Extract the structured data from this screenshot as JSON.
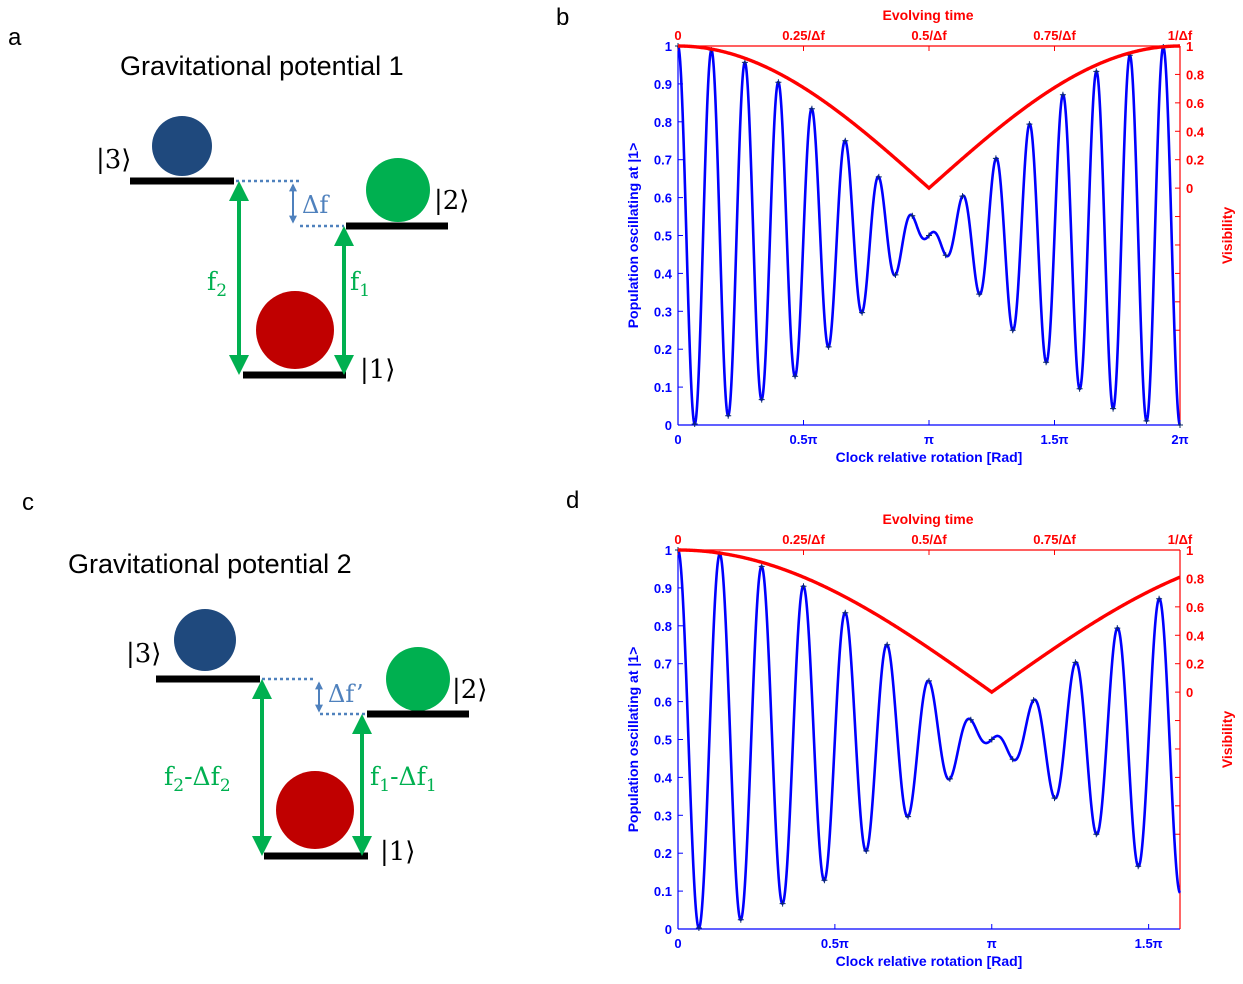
{
  "panels": {
    "a": {
      "letter": "a",
      "title": "Gravitational potential 1",
      "ket3": "|3⟩",
      "ket2": "|2⟩",
      "ket1": "|1⟩",
      "delta": "Δf",
      "left_freq": "f",
      "left_sub": "2",
      "right_freq": "f",
      "right_sub": "1",
      "colors": {
        "ball3": "#1f497d",
        "ball2": "#00b050",
        "ball1": "#c00000",
        "arrow": "#00b050",
        "delta": "#4f81bd"
      }
    },
    "b": {
      "letter": "b"
    },
    "c": {
      "letter": "c",
      "title": "Gravitational potential 2",
      "ket3": "|3⟩",
      "ket2": "|2⟩",
      "ket1": "|1⟩",
      "delta": "Δf’",
      "left_freq": "f",
      "left_sub": "2",
      "left_mid": "-Δf",
      "left_sub2": "2",
      "right_freq": "f",
      "right_sub": "1",
      "right_mid": "-Δf",
      "right_sub2": "1"
    },
    "d": {
      "letter": "d"
    }
  },
  "chart_data": [
    {
      "panel": "b",
      "type": "line",
      "top_title": "Evolving time",
      "xlabel": "Clock relative rotation [Rad]",
      "ylabel": "Population oscillating at |1>",
      "y2label": "Visibility",
      "xlim": [
        0,
        6.2832
      ],
      "ylim": [
        0,
        1
      ],
      "x_ticks": [
        {
          "v": 0,
          "label": "0"
        },
        {
          "v": 1.5708,
          "label": "0.5π"
        },
        {
          "v": 3.1416,
          "label": "π"
        },
        {
          "v": 4.7124,
          "label": "1.5π"
        },
        {
          "v": 6.2832,
          "label": "2π"
        }
      ],
      "y_ticks": [
        {
          "v": 0,
          "label": "0"
        },
        {
          "v": 0.1,
          "label": "0.1"
        },
        {
          "v": 0.2,
          "label": "0.2"
        },
        {
          "v": 0.3,
          "label": "0.3"
        },
        {
          "v": 0.4,
          "label": "0.4"
        },
        {
          "v": 0.5,
          "label": "0.5"
        },
        {
          "v": 0.6,
          "label": "0.6"
        },
        {
          "v": 0.7,
          "label": "0.7"
        },
        {
          "v": 0.8,
          "label": "0.8"
        },
        {
          "v": 0.9,
          "label": "0.9"
        },
        {
          "v": 1,
          "label": "1"
        }
      ],
      "top_ticks": [
        {
          "v": 0,
          "label": "0"
        },
        {
          "v": 1.5708,
          "label": "0.25/Δf"
        },
        {
          "v": 3.1416,
          "label": "0.5/Δf"
        },
        {
          "v": 4.7124,
          "label": "0.75/Δf"
        },
        {
          "v": 6.2832,
          "label": "1/Δf"
        }
      ],
      "y2_ticks": [
        {
          "v": 0,
          "label": "0"
        },
        {
          "v": 0.2,
          "label": "0.2"
        },
        {
          "v": 0.4,
          "label": "0.4"
        },
        {
          "v": 0.6,
          "label": "0.6"
        },
        {
          "v": 0.8,
          "label": "0.8"
        },
        {
          "v": 1,
          "label": "1"
        }
      ],
      "y2_minor_ticks": [
        -1,
        -0.8,
        -0.6,
        -0.4,
        -0.2
      ],
      "y2lim": [
        -1.6667,
        1
      ],
      "series": [
        {
          "kind": "oscillation",
          "color": "#0000ff",
          "cycles": 15,
          "markers": true
        },
        {
          "kind": "visibility",
          "color": "#ff0000"
        }
      ]
    },
    {
      "panel": "d",
      "type": "line",
      "top_title": "Evolving time",
      "xlabel": "Clock relative rotation [Rad]",
      "ylabel": "Population oscillating at |1>",
      "y2label": "Visibility",
      "xlim": [
        0,
        5.0265
      ],
      "ylim": [
        0,
        1
      ],
      "x_ticks": [
        {
          "v": 0,
          "label": "0"
        },
        {
          "v": 1.5708,
          "label": "0.5π"
        },
        {
          "v": 3.1416,
          "label": "π"
        },
        {
          "v": 4.7124,
          "label": "1.5π"
        }
      ],
      "y_ticks": [
        {
          "v": 0,
          "label": "0"
        },
        {
          "v": 0.1,
          "label": "0.1"
        },
        {
          "v": 0.2,
          "label": "0.2"
        },
        {
          "v": 0.3,
          "label": "0.3"
        },
        {
          "v": 0.4,
          "label": "0.4"
        },
        {
          "v": 0.5,
          "label": "0.5"
        },
        {
          "v": 0.6,
          "label": "0.6"
        },
        {
          "v": 0.7,
          "label": "0.7"
        },
        {
          "v": 0.8,
          "label": "0.8"
        },
        {
          "v": 0.9,
          "label": "0.9"
        },
        {
          "v": 1,
          "label": "1"
        }
      ],
      "top_ticks": [
        {
          "v": 0,
          "label": "0"
        },
        {
          "v": 1.2566,
          "label": "0.25/Δf"
        },
        {
          "v": 2.5133,
          "label": "0.5/Δf"
        },
        {
          "v": 3.7699,
          "label": "0.75/Δf"
        },
        {
          "v": 5.0265,
          "label": "1/Δf"
        }
      ],
      "y2_ticks": [
        {
          "v": 0,
          "label": "0"
        },
        {
          "v": 0.2,
          "label": "0.2"
        },
        {
          "v": 0.4,
          "label": "0.4"
        },
        {
          "v": 0.6,
          "label": "0.6"
        },
        {
          "v": 0.8,
          "label": "0.8"
        },
        {
          "v": 1,
          "label": "1"
        }
      ],
      "y2_minor_ticks": [
        -1,
        -0.8,
        -0.6,
        -0.4,
        -0.2
      ],
      "y2lim": [
        -1.6667,
        1
      ],
      "series": [
        {
          "kind": "oscillation",
          "color": "#0000ff",
          "cycles": 15,
          "markers": true
        },
        {
          "kind": "visibility",
          "color": "#ff0000"
        }
      ]
    }
  ]
}
